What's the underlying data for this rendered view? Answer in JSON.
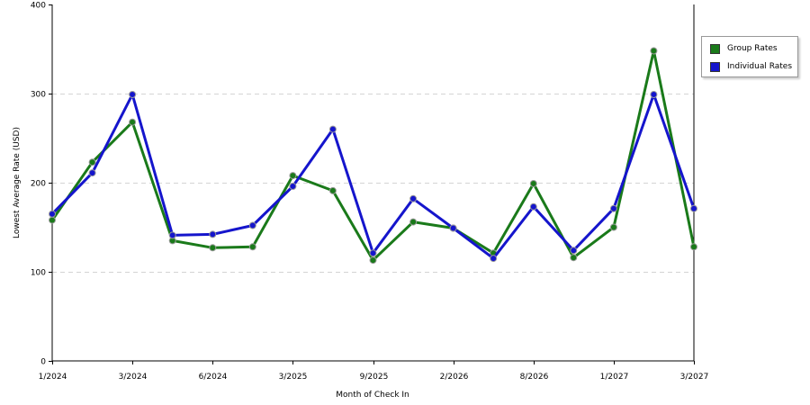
{
  "chart_data": {
    "type": "line",
    "xlabel": "Month of Check In",
    "ylabel": "Lowest Average Rate (USD)",
    "ylim": [
      0,
      400
    ],
    "yticks": [
      0,
      100,
      200,
      300,
      400
    ],
    "x_tick_labels": [
      {
        "index": 0,
        "label": "1/2024"
      },
      {
        "index": 2,
        "label": "3/2024"
      },
      {
        "index": 4,
        "label": "6/2024"
      },
      {
        "index": 6,
        "label": "3/2025"
      },
      {
        "index": 8,
        "label": "9/2025"
      },
      {
        "index": 10,
        "label": "2/2026"
      },
      {
        "index": 12,
        "label": "8/2026"
      },
      {
        "index": 14,
        "label": "1/2027"
      },
      {
        "index": 16,
        "label": "3/2027"
      }
    ],
    "grid": "horizontal-dashed",
    "legend_position": "right",
    "series": [
      {
        "name": "Group Rates",
        "color": "#1a7a1a",
        "values": [
          158,
          223,
          268,
          135,
          127,
          128,
          208,
          191,
          113,
          156,
          149,
          121,
          199,
          116,
          150,
          348,
          128
        ]
      },
      {
        "name": "Individual Rates",
        "color": "#1515cc",
        "values": [
          165,
          211,
          299,
          141,
          142,
          152,
          196,
          260,
          121,
          182,
          149,
          115,
          173,
          124,
          171,
          299,
          171
        ]
      }
    ]
  }
}
